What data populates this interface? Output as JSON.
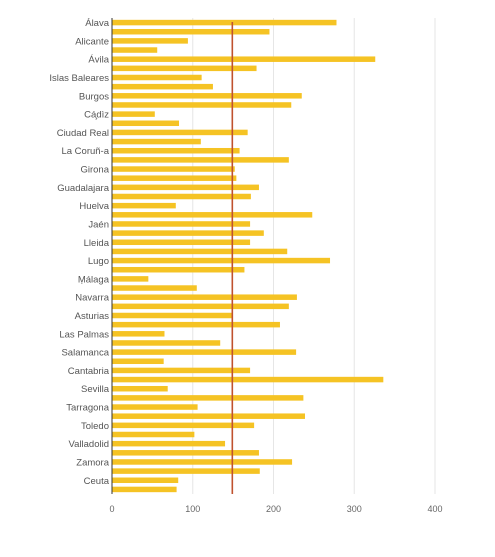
{
  "chart_data": {
    "type": "bar",
    "orientation": "horizontal",
    "categories": [
      "Álava",
      "",
      "Alicante",
      "",
      "Ávila",
      "",
      "Islas Baleares",
      "",
      "Burgos",
      "",
      "Cá̧dìz",
      "",
      "Ciudad Real",
      "",
      "La Coruñ-a",
      "",
      "Girona",
      "",
      "Guadalajara",
      "",
      "Huelva",
      "",
      "Jaén",
      "",
      "Lleida",
      "",
      "Lugo",
      "",
      "Ṃálaga",
      "",
      "Navarra",
      "",
      "Asturias",
      "",
      "Las Palmas",
      "",
      "Salamanca",
      "",
      "Cantabria",
      "",
      "Sevilla",
      "",
      "Tarragona",
      "",
      "Toledo",
      "",
      "Valladolid",
      "",
      "Zamora",
      "",
      "Ceuta",
      ""
    ],
    "values": [
      278,
      195,
      94,
      56,
      326,
      179,
      111,
      125,
      235,
      222,
      53,
      83,
      168,
      110,
      158,
      219,
      152,
      154,
      182,
      172,
      79,
      248,
      171,
      188,
      171,
      217,
      270,
      164,
      45,
      105,
      229,
      219,
      148,
      208,
      65,
      134,
      228,
      64,
      171,
      336,
      69,
      237,
      106,
      239,
      176,
      102,
      140,
      182,
      223,
      183,
      82,
      80
    ],
    "reference_line": 149,
    "xlim": [
      0,
      400
    ],
    "xticks": [
      0,
      100,
      200,
      300,
      400
    ],
    "grid": true,
    "colors": {
      "bar": "#F5C324",
      "reference_line": "#C0522E",
      "grid": "#E6E6E6",
      "axis": "#333333"
    }
  }
}
